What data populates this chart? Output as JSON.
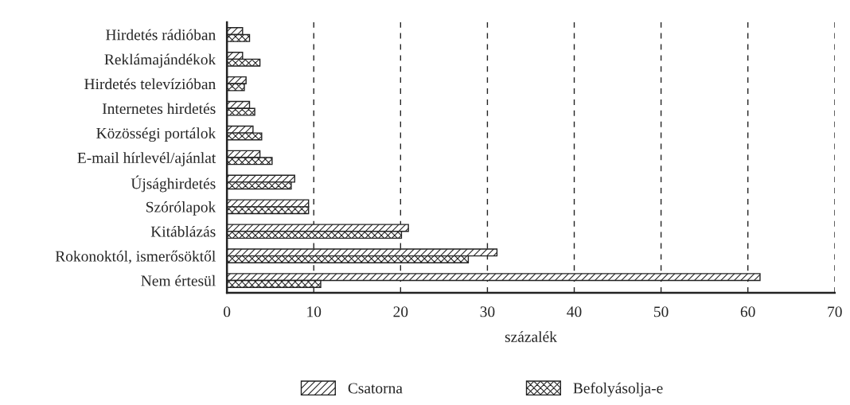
{
  "chart_data": {
    "type": "bar",
    "orientation": "horizontal",
    "xlabel": "százalék",
    "categories": [
      "Hirdetés rádióban",
      "Reklámajándékok",
      "Hirdetés televízióban",
      "Internetes hirdetés",
      "Közösségi portálok",
      "E-mail hírlevél/ajánlat",
      "Újsághirdetés",
      "Szórólapok",
      "Kitáblázás",
      "Rokonoktól, ismerősöktől",
      "Nem értesül"
    ],
    "series": [
      {
        "name": "Csatorna",
        "color": "#222222",
        "values": [
          1.8,
          1.8,
          2.2,
          2.6,
          3.0,
          3.8,
          7.8,
          9.4,
          20.9,
          31.1,
          61.4
        ]
      },
      {
        "name": "Befolyásolja-e",
        "color": "#222222",
        "values": [
          2.6,
          3.8,
          2.0,
          3.2,
          4.0,
          5.2,
          7.4,
          9.4,
          20.1,
          27.8,
          10.8
        ]
      }
    ],
    "xlim": [
      0,
      70
    ],
    "xticks": [
      0,
      10,
      20,
      30,
      40,
      50,
      60,
      70
    ],
    "grid": "x",
    "line_style": "dashed",
    "legend": "bottom"
  }
}
